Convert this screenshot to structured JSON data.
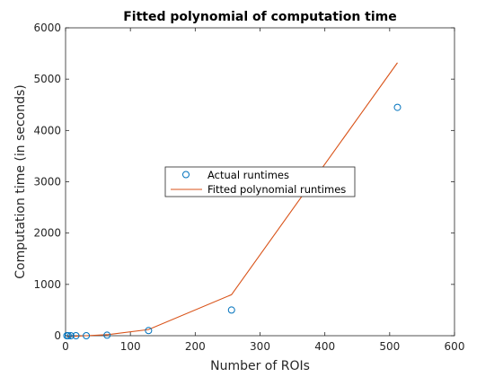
{
  "chart_data": {
    "type": "scatter",
    "title": "Fitted polynomial of computation time",
    "xlabel": "Number of ROIs",
    "ylabel": "Computation time (in seconds)",
    "xlim": [
      0,
      600
    ],
    "ylim": [
      0,
      6000
    ],
    "xticks": [
      "0",
      "100",
      "200",
      "300",
      "400",
      "500",
      "600"
    ],
    "yticks": [
      "0",
      "1000",
      "2000",
      "3000",
      "4000",
      "5000",
      "6000"
    ],
    "grid": false,
    "legend_position": "center",
    "series": [
      {
        "name": "Actual runtimes",
        "kind": "markers",
        "marker": "circle",
        "color": "#0072BD",
        "x": [
          2,
          4,
          8,
          16,
          32,
          64,
          128,
          256,
          512
        ],
        "y": [
          0,
          0,
          0,
          0,
          0,
          10,
          100,
          500,
          4450
        ]
      },
      {
        "name": "Fitted polynomial runtimes",
        "kind": "line",
        "color": "#D95319",
        "x": [
          2,
          4,
          8,
          16,
          32,
          64,
          128,
          256,
          512
        ],
        "y": [
          -20,
          -20,
          -15,
          -10,
          0,
          20,
          120,
          800,
          5320
        ]
      }
    ]
  }
}
